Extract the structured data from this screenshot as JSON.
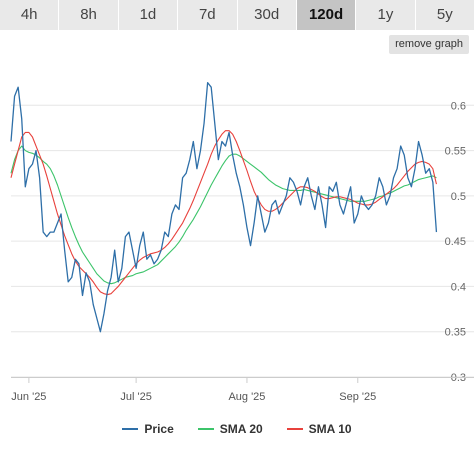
{
  "tabs": [
    {
      "label": "4h",
      "active": false
    },
    {
      "label": "8h",
      "active": false
    },
    {
      "label": "1d",
      "active": false
    },
    {
      "label": "7d",
      "active": false
    },
    {
      "label": "30d",
      "active": false
    },
    {
      "label": "120d",
      "active": true
    },
    {
      "label": "1y",
      "active": false
    },
    {
      "label": "5y",
      "active": false
    }
  ],
  "remove_graph_label": "remove graph",
  "colors": {
    "price": "#2e6fa8",
    "sma20": "#3cc46a",
    "sma10": "#e8413c",
    "grid": "#e6e6e6",
    "axis": "#cccccc"
  },
  "chart_data": {
    "type": "line",
    "title": "",
    "xlabel": "",
    "ylabel": "",
    "x_unit": "days since 2025-05-27",
    "xlim": [
      0,
      120
    ],
    "ylim": [
      0.3,
      0.65
    ],
    "y_ticks": [
      0.3,
      0.35,
      0.4,
      0.45,
      0.5,
      0.55,
      0.6
    ],
    "y_tick_labels": [
      "0.3",
      "0.35",
      "0.4",
      "0.45",
      "0.5",
      "0.55",
      "0.6"
    ],
    "x_ticks": [
      5,
      35,
      66,
      97
    ],
    "x_tick_labels": [
      "Jun '25",
      "Jul '25",
      "Aug '25",
      "Sep '25"
    ],
    "grid": true,
    "legend": "bottom",
    "series": [
      {
        "name": "Price",
        "color": "#2e6fa8",
        "x": [
          0,
          1,
          2,
          3,
          4,
          5,
          6,
          7,
          8,
          9,
          10,
          11,
          12,
          13,
          14,
          15,
          16,
          17,
          18,
          19,
          20,
          21,
          22,
          23,
          24,
          25,
          26,
          27,
          28,
          29,
          30,
          31,
          32,
          33,
          34,
          35,
          36,
          37,
          38,
          39,
          40,
          41,
          42,
          43,
          44,
          45,
          46,
          47,
          48,
          49,
          50,
          51,
          52,
          53,
          54,
          55,
          56,
          57,
          58,
          59,
          60,
          61,
          62,
          63,
          64,
          65,
          66,
          67,
          68,
          69,
          70,
          71,
          72,
          73,
          74,
          75,
          76,
          77,
          78,
          79,
          80,
          81,
          82,
          83,
          84,
          85,
          86,
          87,
          88,
          89,
          90,
          91,
          92,
          93,
          94,
          95,
          96,
          97,
          98,
          99,
          100,
          101,
          102,
          103,
          104,
          105,
          106,
          107,
          108,
          109,
          110,
          111,
          112,
          113,
          114,
          115,
          116,
          117,
          118,
          119
        ],
        "values": [
          0.56,
          0.61,
          0.62,
          0.585,
          0.51,
          0.53,
          0.535,
          0.55,
          0.52,
          0.46,
          0.455,
          0.46,
          0.46,
          0.47,
          0.48,
          0.44,
          0.405,
          0.41,
          0.43,
          0.425,
          0.39,
          0.415,
          0.405,
          0.38,
          0.365,
          0.35,
          0.37,
          0.395,
          0.41,
          0.44,
          0.405,
          0.42,
          0.455,
          0.46,
          0.44,
          0.42,
          0.445,
          0.46,
          0.43,
          0.435,
          0.425,
          0.43,
          0.44,
          0.46,
          0.455,
          0.48,
          0.49,
          0.485,
          0.52,
          0.525,
          0.54,
          0.56,
          0.53,
          0.55,
          0.58,
          0.625,
          0.62,
          0.58,
          0.54,
          0.56,
          0.555,
          0.57,
          0.545,
          0.525,
          0.51,
          0.49,
          0.465,
          0.445,
          0.47,
          0.5,
          0.48,
          0.46,
          0.47,
          0.49,
          0.495,
          0.48,
          0.49,
          0.5,
          0.52,
          0.515,
          0.505,
          0.49,
          0.51,
          0.52,
          0.5,
          0.485,
          0.51,
          0.49,
          0.465,
          0.51,
          0.505,
          0.515,
          0.49,
          0.48,
          0.495,
          0.51,
          0.47,
          0.48,
          0.5,
          0.49,
          0.485,
          0.49,
          0.5,
          0.52,
          0.51,
          0.49,
          0.5,
          0.52,
          0.53,
          0.555,
          0.545,
          0.52,
          0.51,
          0.53,
          0.56,
          0.545,
          0.525,
          0.53,
          0.515,
          0.46
        ]
      },
      {
        "name": "SMA 20",
        "color": "#3cc46a",
        "x": [
          0,
          1,
          2,
          3,
          4,
          5,
          6,
          7,
          8,
          9,
          10,
          11,
          12,
          13,
          14,
          15,
          16,
          17,
          18,
          19,
          20,
          21,
          22,
          23,
          24,
          25,
          26,
          27,
          28,
          29,
          30,
          31,
          32,
          33,
          34,
          35,
          36,
          37,
          38,
          39,
          40,
          41,
          42,
          43,
          44,
          45,
          46,
          47,
          48,
          49,
          50,
          51,
          52,
          53,
          54,
          55,
          56,
          57,
          58,
          59,
          60,
          61,
          62,
          63,
          64,
          65,
          66,
          67,
          68,
          69,
          70,
          71,
          72,
          73,
          74,
          75,
          76,
          77,
          78,
          79,
          80,
          81,
          82,
          83,
          84,
          85,
          86,
          87,
          88,
          89,
          90,
          91,
          92,
          93,
          94,
          95,
          96,
          97,
          98,
          99,
          100,
          101,
          102,
          103,
          104,
          105,
          106,
          107,
          108,
          109,
          110,
          111,
          112,
          113,
          114,
          115,
          116,
          117,
          118,
          119
        ],
        "values": [
          0.525,
          0.54,
          0.55,
          0.555,
          0.55,
          0.548,
          0.547,
          0.545,
          0.542,
          0.538,
          0.535,
          0.53,
          0.522,
          0.512,
          0.5,
          0.488,
          0.476,
          0.465,
          0.455,
          0.446,
          0.438,
          0.432,
          0.426,
          0.42,
          0.414,
          0.41,
          0.406,
          0.404,
          0.403,
          0.404,
          0.406,
          0.408,
          0.41,
          0.411,
          0.412,
          0.414,
          0.415,
          0.416,
          0.418,
          0.42,
          0.422,
          0.424,
          0.428,
          0.432,
          0.436,
          0.44,
          0.444,
          0.449,
          0.455,
          0.462,
          0.468,
          0.474,
          0.481,
          0.488,
          0.496,
          0.504,
          0.512,
          0.519,
          0.526,
          0.533,
          0.539,
          0.544,
          0.546,
          0.546,
          0.544,
          0.541,
          0.538,
          0.535,
          0.532,
          0.529,
          0.526,
          0.522,
          0.518,
          0.515,
          0.512,
          0.51,
          0.508,
          0.507,
          0.506,
          0.506,
          0.506,
          0.506,
          0.507,
          0.506,
          0.505,
          0.504,
          0.503,
          0.502,
          0.501,
          0.5,
          0.499,
          0.498,
          0.497,
          0.496,
          0.495,
          0.494,
          0.494,
          0.494,
          0.494,
          0.494,
          0.495,
          0.496,
          0.497,
          0.499,
          0.5,
          0.502,
          0.503,
          0.505,
          0.507,
          0.509,
          0.511,
          0.512,
          0.514,
          0.516,
          0.518,
          0.519,
          0.52,
          0.521,
          0.522,
          0.52
        ]
      },
      {
        "name": "SMA 10",
        "color": "#e8413c",
        "x": [
          0,
          1,
          2,
          3,
          4,
          5,
          6,
          7,
          8,
          9,
          10,
          11,
          12,
          13,
          14,
          15,
          16,
          17,
          18,
          19,
          20,
          21,
          22,
          23,
          24,
          25,
          26,
          27,
          28,
          29,
          30,
          31,
          32,
          33,
          34,
          35,
          36,
          37,
          38,
          39,
          40,
          41,
          42,
          43,
          44,
          45,
          46,
          47,
          48,
          49,
          50,
          51,
          52,
          53,
          54,
          55,
          56,
          57,
          58,
          59,
          60,
          61,
          62,
          63,
          64,
          65,
          66,
          67,
          68,
          69,
          70,
          71,
          72,
          73,
          74,
          75,
          76,
          77,
          78,
          79,
          80,
          81,
          82,
          83,
          84,
          85,
          86,
          87,
          88,
          89,
          90,
          91,
          92,
          93,
          94,
          95,
          96,
          97,
          98,
          99,
          100,
          101,
          102,
          103,
          104,
          105,
          106,
          107,
          108,
          109,
          110,
          111,
          112,
          113,
          114,
          115,
          116,
          117,
          118,
          119
        ],
        "values": [
          0.52,
          0.535,
          0.55,
          0.565,
          0.57,
          0.57,
          0.565,
          0.555,
          0.545,
          0.535,
          0.522,
          0.508,
          0.494,
          0.48,
          0.468,
          0.456,
          0.446,
          0.436,
          0.428,
          0.422,
          0.418,
          0.414,
          0.41,
          0.405,
          0.399,
          0.394,
          0.392,
          0.391,
          0.392,
          0.396,
          0.4,
          0.405,
          0.41,
          0.415,
          0.42,
          0.425,
          0.429,
          0.432,
          0.434,
          0.436,
          0.437,
          0.438,
          0.44,
          0.443,
          0.447,
          0.452,
          0.458,
          0.464,
          0.47,
          0.478,
          0.486,
          0.495,
          0.505,
          0.515,
          0.525,
          0.535,
          0.546,
          0.555,
          0.562,
          0.568,
          0.572,
          0.572,
          0.568,
          0.56,
          0.55,
          0.539,
          0.528,
          0.516,
          0.505,
          0.497,
          0.49,
          0.485,
          0.483,
          0.483,
          0.485,
          0.488,
          0.492,
          0.496,
          0.5,
          0.504,
          0.508,
          0.51,
          0.51,
          0.509,
          0.507,
          0.505,
          0.502,
          0.499,
          0.497,
          0.497,
          0.498,
          0.499,
          0.499,
          0.498,
          0.497,
          0.496,
          0.494,
          0.492,
          0.491,
          0.49,
          0.49,
          0.491,
          0.493,
          0.496,
          0.499,
          0.502,
          0.505,
          0.508,
          0.512,
          0.517,
          0.522,
          0.527,
          0.531,
          0.535,
          0.537,
          0.538,
          0.537,
          0.535,
          0.53,
          0.513
        ]
      }
    ]
  }
}
